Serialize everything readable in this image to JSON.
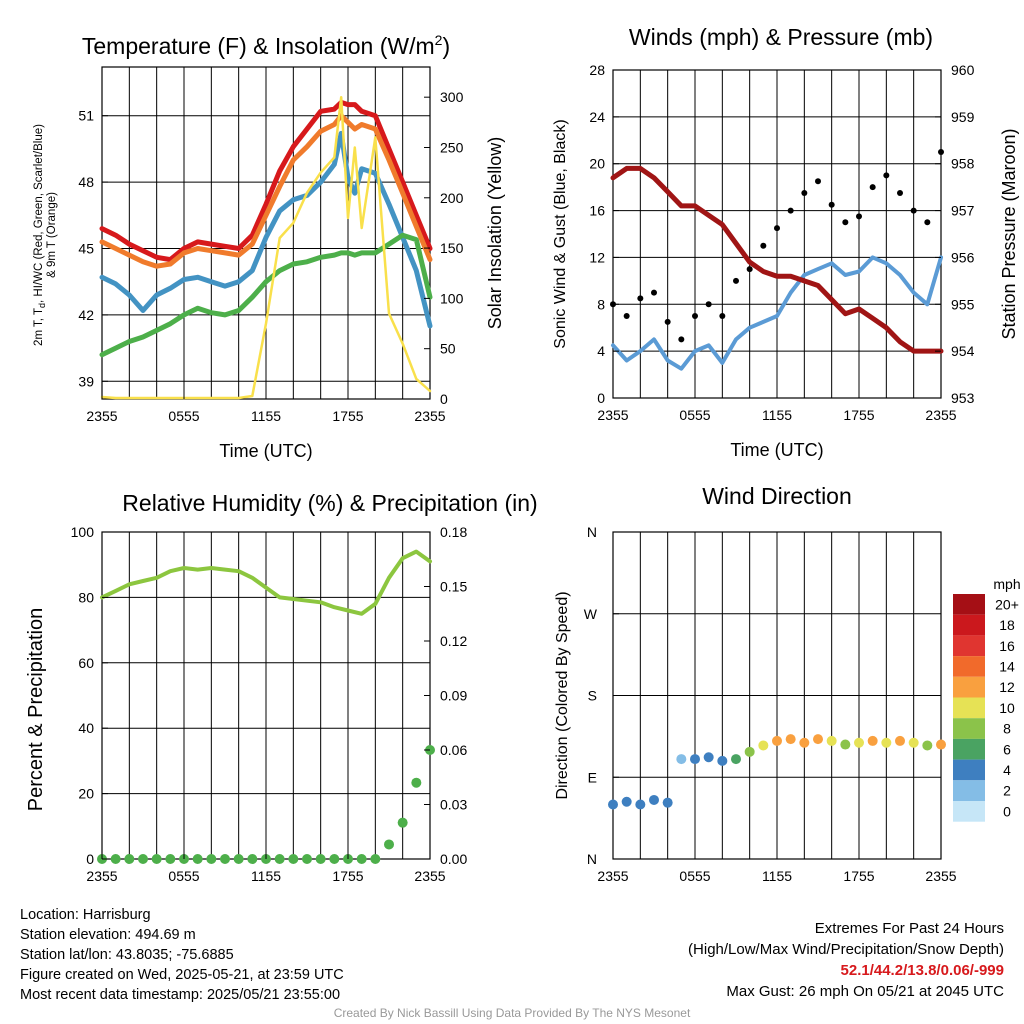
{
  "chart_data": [
    {
      "type": "line",
      "title": "Temperature (F) & Insolation (W/m²)",
      "title_main": "Temperature (F) & Insolation (W/m",
      "title_sup": "2",
      "title_end": ")",
      "xlabel": "Time (UTC)",
      "ylabel_line1": "2m T, T",
      "ylabel_sub": "d",
      "ylabel_rest": ", HI/WC (Red, Green, Scarlet/Blue)",
      "ylabel_line2": "& 9m T (Orange)",
      "y2label": "Solar Insolation (Yellow)",
      "xticks": [
        "2355",
        "0555",
        "1155",
        "1755",
        "2355"
      ],
      "yticks": [
        39,
        42,
        45,
        48,
        51
      ],
      "ylim": [
        38.2,
        53.2
      ],
      "y2ticks": [
        0,
        50,
        100,
        150,
        200,
        250,
        300
      ],
      "y2lim": [
        0,
        330
      ],
      "x_hours": [
        0,
        1,
        2,
        3,
        4,
        5,
        6,
        7,
        8,
        9,
        10,
        11,
        12,
        13,
        14,
        15,
        16,
        17,
        17.5,
        18,
        18.5,
        19,
        20,
        21,
        22,
        23,
        24
      ],
      "series": [
        {
          "color": "#d7191c",
          "values": [
            45.9,
            45.6,
            45.2,
            44.9,
            44.6,
            44.5,
            45.0,
            45.3,
            45.2,
            45.1,
            45.0,
            45.6,
            47.0,
            48.5,
            49.6,
            50.4,
            51.2,
            51.3,
            51.6,
            51.5,
            51.5,
            51.2,
            51.0,
            49.5,
            48.0,
            46.5,
            45.0
          ]
        },
        {
          "color": "#f07b2c",
          "values": [
            45.3,
            45.0,
            44.7,
            44.4,
            44.2,
            44.3,
            44.8,
            45.0,
            44.9,
            44.8,
            44.7,
            45.2,
            46.5,
            47.8,
            49.0,
            49.6,
            50.3,
            50.6,
            51.0,
            50.7,
            50.4,
            50.6,
            50.4,
            49.0,
            47.5,
            46.0,
            44.5
          ]
        },
        {
          "color": "#4393c3",
          "values": [
            43.7,
            43.4,
            42.9,
            42.2,
            42.9,
            43.2,
            43.6,
            43.7,
            43.5,
            43.3,
            43.5,
            44.0,
            45.5,
            46.7,
            47.2,
            47.4,
            48.0,
            48.8,
            50.2,
            48.2,
            47.5,
            48.6,
            48.4,
            47.0,
            45.5,
            44.0,
            41.5
          ]
        },
        {
          "color": "#4daf4a",
          "values": [
            40.2,
            40.5,
            40.8,
            41.0,
            41.3,
            41.6,
            42.0,
            42.3,
            42.1,
            42.0,
            42.2,
            42.8,
            43.5,
            44.0,
            44.3,
            44.4,
            44.6,
            44.7,
            44.8,
            44.8,
            44.7,
            44.8,
            44.8,
            45.2,
            45.6,
            45.4,
            42.8
          ]
        },
        {
          "color": "#f9e04b",
          "values": [
            2,
            1,
            1,
            1,
            1,
            1,
            1,
            1,
            1,
            1,
            1,
            3,
            75,
            160,
            175,
            205,
            225,
            240,
            300,
            180,
            250,
            170,
            260,
            85,
            55,
            20,
            8
          ]
        }
      ]
    },
    {
      "type": "scatter",
      "title": "Winds (mph) & Pressure (mb)",
      "xlabel": "Time (UTC)",
      "ylabel": "Sonic Wind & Gust (Blue, Black)",
      "y2label": "Station Pressure (Maroon)",
      "xticks": [
        "2355",
        "0555",
        "1155",
        "1755",
        "2355"
      ],
      "yticks": [
        0,
        4,
        8,
        12,
        16,
        20,
        24,
        28
      ],
      "ylim": [
        0,
        28
      ],
      "y2ticks": [
        953,
        954,
        955,
        956,
        957,
        958,
        959,
        960
      ],
      "y2lim": [
        953,
        960
      ],
      "x_hours": [
        0,
        1,
        2,
        3,
        4,
        5,
        6,
        7,
        8,
        9,
        10,
        11,
        12,
        13,
        14,
        15,
        16,
        17,
        18,
        19,
        20,
        21,
        22,
        23,
        24
      ],
      "series": [
        {
          "color": "#5b9bd5",
          "values": [
            4.5,
            3.2,
            4.0,
            5.0,
            3.2,
            2.5,
            4.0,
            4.5,
            3.0,
            5.0,
            6.0,
            6.5,
            7.0,
            9.0,
            10.5,
            11.0,
            11.5,
            10.5,
            10.8,
            12.0,
            11.5,
            10.5,
            9.0,
            8.0,
            12.0
          ]
        },
        {
          "color": "#000000",
          "values": [
            8.0,
            7.0,
            8.5,
            9.0,
            6.5,
            5.0,
            7.0,
            8.0,
            7.0,
            10.0,
            11.0,
            13.0,
            14.5,
            16.0,
            17.5,
            18.5,
            16.5,
            15.0,
            15.5,
            18.0,
            19.0,
            17.5,
            16.0,
            15.0,
            21.0
          ]
        },
        {
          "color": "#a01515",
          "values": [
            957.7,
            957.9,
            957.9,
            957.7,
            957.4,
            957.1,
            957.1,
            956.9,
            956.7,
            956.3,
            955.9,
            955.7,
            955.6,
            955.6,
            955.5,
            955.4,
            955.1,
            954.8,
            954.9,
            954.7,
            954.5,
            954.2,
            954.0,
            954.0,
            954.0
          ]
        }
      ]
    },
    {
      "type": "line",
      "title": "Relative Humidity (%) & Precipitation (in)",
      "ylabel": "Percent & Precipitation",
      "xticks": [
        "2355",
        "0555",
        "1155",
        "1755",
        "2355"
      ],
      "yticks": [
        0,
        20,
        40,
        60,
        80,
        100
      ],
      "ylim": [
        0,
        100
      ],
      "y2ticks": [
        "0.00",
        "0.03",
        "0.06",
        "0.09",
        "0.12",
        "0.15",
        "0.18"
      ],
      "y2lim": [
        0,
        0.18
      ],
      "x_hours": [
        0,
        1,
        2,
        3,
        4,
        5,
        6,
        7,
        8,
        9,
        10,
        11,
        12,
        13,
        14,
        15,
        16,
        17,
        18,
        19,
        20,
        21,
        22,
        23,
        24
      ],
      "series": [
        {
          "color": "#8cc63f",
          "values": [
            80,
            82,
            84,
            85,
            86,
            88,
            89,
            88.5,
            89,
            88.5,
            88,
            86,
            83,
            80,
            79.5,
            79,
            78.5,
            77,
            76,
            75,
            78,
            86,
            92,
            94,
            91
          ]
        },
        {
          "color": "#4daf4a",
          "values": [
            0,
            0,
            0,
            0,
            0,
            0,
            0,
            0,
            0,
            0,
            0,
            0,
            0,
            0,
            0,
            0,
            0,
            0,
            0,
            0,
            0,
            0.008,
            0.02,
            0.042,
            0.06
          ]
        }
      ]
    },
    {
      "type": "scatter",
      "title": "Wind Direction",
      "ylabel": "Direction (Colored By Speed)",
      "xticks": [
        "2355",
        "0555",
        "1155",
        "1755",
        "2355"
      ],
      "yticks": [
        "N",
        "E",
        "S",
        "W",
        "N"
      ],
      "ylim": [
        0,
        360
      ],
      "legend_title": "mph",
      "legend_labels": [
        "20+",
        "18",
        "16",
        "14",
        "12",
        "10",
        "8",
        "6",
        "4",
        "2",
        "0"
      ],
      "legend_colors": [
        "#a50f15",
        "#cb181d",
        "#e03530",
        "#f16a2b",
        "#f9a03f",
        "#e6e255",
        "#8bc34a",
        "#4aa362",
        "#3e7fc0",
        "#84bde6",
        "#c6e6f7"
      ],
      "x_hours": [
        0,
        1,
        2,
        3,
        4,
        5,
        6,
        7,
        8,
        9,
        10,
        11,
        12,
        13,
        14,
        15,
        16,
        17,
        18,
        19,
        20,
        21,
        22,
        23,
        24
      ],
      "direction_deg": [
        60,
        63,
        60,
        65,
        62,
        110,
        110,
        112,
        108,
        110,
        118,
        125,
        130,
        132,
        128,
        132,
        130,
        126,
        128,
        130,
        128,
        130,
        128,
        125,
        126
      ],
      "speed_mph": [
        3,
        4,
        3,
        4,
        3,
        2,
        4,
        4,
        3,
        5,
        7,
        9,
        11,
        11,
        12,
        12,
        10,
        7,
        10,
        11,
        10,
        11,
        9,
        8,
        11
      ]
    }
  ],
  "footer": {
    "location": "Location: Harrisburg",
    "elevation": "Station elevation: 494.69 m",
    "latlon": "Station lat/lon: 43.8035; -75.6885",
    "created": "Figure created on Wed, 2025-05-21, at 23:59 UTC",
    "recent": "Most recent data timestamp: 2025/05/21 23:55:00",
    "extremes_title": "Extremes For Past 24 Hours",
    "extremes_sub": "(High/Low/Max Wind/Precipitation/Snow Depth)",
    "extremes_values": "52.1/44.2/13.8/0.06/-999",
    "max_gust": "Max Gust: 26 mph On 05/21 at 2045 UTC",
    "credit": "Created By Nick Bassill Using Data Provided By The NYS Mesonet"
  }
}
